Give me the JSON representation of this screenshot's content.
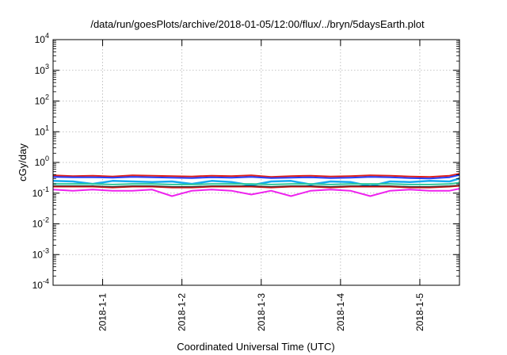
{
  "chart_data": {
    "type": "line",
    "title": "/data/run/goesPlots/archive/2018-01-05/12:00/flux/../bryn/5daysEarth.plot",
    "xlabel": "Coordinated Universal Time (UTC)",
    "ylabel": "cGy/day",
    "y_scale": "log",
    "ylim": [
      0.0001,
      10000
    ],
    "xlim": [
      "2017-12-31T09:00",
      "2018-01-05T12:00"
    ],
    "grid": true,
    "y_ticks": [
      {
        "value": 0.0001,
        "base": "10",
        "exp": "-4"
      },
      {
        "value": 0.001,
        "base": "10",
        "exp": "-3"
      },
      {
        "value": 0.01,
        "base": "10",
        "exp": "-2"
      },
      {
        "value": 0.1,
        "base": "10",
        "exp": "-1"
      },
      {
        "value": 1,
        "base": "10",
        "exp": "0"
      },
      {
        "value": 10,
        "base": "10",
        "exp": "1"
      },
      {
        "value": 100,
        "base": "10",
        "exp": "2"
      },
      {
        "value": 1000,
        "base": "10",
        "exp": "3"
      },
      {
        "value": 10000,
        "base": "10",
        "exp": "4"
      }
    ],
    "x_ticks": [
      {
        "value": "2018-01-01T00:00",
        "label": "2018-1-1"
      },
      {
        "value": "2018-01-02T00:00",
        "label": "2018-1-2"
      },
      {
        "value": "2018-01-03T00:00",
        "label": "2018-1-3"
      },
      {
        "value": "2018-01-04T00:00",
        "label": "2018-1-4"
      },
      {
        "value": "2018-01-05T00:00",
        "label": "2018-1-5"
      }
    ],
    "x": [
      "2017-12-31T09:00",
      "2017-12-31T15:00",
      "2017-12-31T21:00",
      "2018-01-01T03:00",
      "2018-01-01T09:00",
      "2018-01-01T15:00",
      "2018-01-01T21:00",
      "2018-01-02T03:00",
      "2018-01-02T09:00",
      "2018-01-02T15:00",
      "2018-01-02T21:00",
      "2018-01-03T03:00",
      "2018-01-03T09:00",
      "2018-01-03T15:00",
      "2018-01-03T21:00",
      "2018-01-04T03:00",
      "2018-01-04T09:00",
      "2018-01-04T15:00",
      "2018-01-04T21:00",
      "2018-01-05T03:00",
      "2018-01-05T09:00",
      "2018-01-05T12:00"
    ],
    "series": [
      {
        "color": "#e0201b",
        "width": 2,
        "values": [
          0.38,
          0.36,
          0.37,
          0.35,
          0.38,
          0.37,
          0.36,
          0.35,
          0.37,
          0.36,
          0.38,
          0.34,
          0.36,
          0.37,
          0.35,
          0.36,
          0.38,
          0.37,
          0.35,
          0.34,
          0.37,
          0.43
        ]
      },
      {
        "color": "#2340ff",
        "width": 2,
        "values": [
          0.34,
          0.33,
          0.33,
          0.32,
          0.34,
          0.33,
          0.32,
          0.31,
          0.33,
          0.32,
          0.34,
          0.31,
          0.32,
          0.33,
          0.31,
          0.32,
          0.34,
          0.33,
          0.31,
          0.3,
          0.33,
          0.39
        ]
      },
      {
        "color": "#16a8f0",
        "width": 2.5,
        "values": [
          0.25,
          0.24,
          0.2,
          0.25,
          0.24,
          0.23,
          0.24,
          0.2,
          0.25,
          0.23,
          0.18,
          0.24,
          0.25,
          0.19,
          0.24,
          0.23,
          0.17,
          0.24,
          0.23,
          0.25,
          0.24,
          0.3
        ]
      },
      {
        "color": "#2cc99a",
        "width": 2,
        "values": [
          0.2,
          0.2,
          0.2,
          0.19,
          0.2,
          0.2,
          0.19,
          0.19,
          0.2,
          0.2,
          0.2,
          0.19,
          0.2,
          0.2,
          0.19,
          0.2,
          0.2,
          0.2,
          0.19,
          0.19,
          0.2,
          0.22
        ]
      },
      {
        "color": "#2b2b2b",
        "width": 1.5,
        "values": [
          0.17,
          0.17,
          0.17,
          0.16,
          0.17,
          0.17,
          0.16,
          0.16,
          0.17,
          0.17,
          0.17,
          0.16,
          0.17,
          0.17,
          0.16,
          0.17,
          0.17,
          0.17,
          0.16,
          0.16,
          0.17,
          0.18
        ]
      },
      {
        "color": "#c81616",
        "width": 1.5,
        "values": [
          0.16,
          0.16,
          0.16,
          0.15,
          0.16,
          0.16,
          0.15,
          0.15,
          0.16,
          0.16,
          0.16,
          0.15,
          0.16,
          0.16,
          0.15,
          0.16,
          0.16,
          0.16,
          0.15,
          0.15,
          0.16,
          0.17
        ]
      },
      {
        "color": "#ee22ee",
        "width": 2,
        "values": [
          0.13,
          0.12,
          0.13,
          0.12,
          0.12,
          0.13,
          0.08,
          0.12,
          0.13,
          0.12,
          0.09,
          0.12,
          0.08,
          0.12,
          0.13,
          0.12,
          0.08,
          0.12,
          0.13,
          0.12,
          0.12,
          0.14
        ]
      }
    ]
  }
}
